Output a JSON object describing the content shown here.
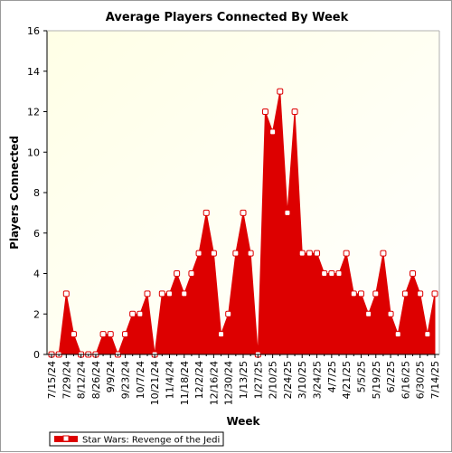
{
  "chart_data": {
    "type": "area",
    "title": "Average Players Connected By Week",
    "xlabel": "Week",
    "ylabel": "Players Connected",
    "ylim": [
      0,
      16
    ],
    "yticks": [
      0,
      2,
      4,
      6,
      8,
      10,
      12,
      14,
      16
    ],
    "grid": false,
    "legend_position": "bottom-left",
    "colors": {
      "series": "#dd0000",
      "marker_fill": "#ffffff",
      "plot_bg_start": "#ffffe6",
      "plot_bg_end": "#ffffff"
    },
    "x": [
      "7/15/24",
      "7/22/24",
      "7/29/24",
      "8/5/24",
      "8/12/24",
      "8/19/24",
      "8/26/24",
      "9/2/24",
      "9/9/24",
      "9/16/24",
      "9/23/24",
      "9/30/24",
      "10/7/24",
      "10/14/24",
      "10/21/24",
      "10/28/24",
      "11/4/24",
      "11/11/24",
      "11/18/24",
      "11/25/24",
      "12/2/24",
      "12/9/24",
      "12/16/24",
      "12/23/24",
      "12/30/24",
      "1/6/25",
      "1/13/25",
      "1/20/25",
      "1/27/25",
      "2/3/25",
      "2/10/25",
      "2/17/25",
      "2/24/25",
      "3/3/25",
      "3/10/25",
      "3/17/25",
      "3/24/25",
      "3/31/25",
      "4/7/25",
      "4/14/25",
      "4/21/25",
      "4/28/25",
      "5/5/25",
      "5/12/25",
      "5/19/25",
      "5/26/25",
      "6/2/25",
      "6/9/25",
      "6/16/25",
      "6/23/25",
      "6/30/25",
      "7/7/25",
      "7/14/25"
    ],
    "x_tick_labels": [
      "7/15/24",
      "7/29/24",
      "8/12/24",
      "8/26/24",
      "9/9/24",
      "9/23/24",
      "10/7/24",
      "10/21/24",
      "11/4/24",
      "11/18/24",
      "12/2/24",
      "12/16/24",
      "12/30/24",
      "1/13/25",
      "1/27/25",
      "2/10/25",
      "2/24/25",
      "3/10/25",
      "3/24/25",
      "4/7/25",
      "4/21/25",
      "5/5/25",
      "5/19/25",
      "6/2/25",
      "6/16/25",
      "6/30/25",
      "7/14/25"
    ],
    "series": [
      {
        "name": "Star Wars: Revenge of the Jedi",
        "values": [
          0,
          0,
          3,
          1,
          0,
          0,
          0,
          1,
          1,
          0,
          1,
          2,
          2,
          3,
          0,
          3,
          3,
          4,
          3,
          4,
          5,
          7,
          5,
          1,
          2,
          5,
          7,
          5,
          0,
          12,
          11,
          13,
          7,
          12,
          5,
          5,
          5,
          4,
          4,
          4,
          5,
          3,
          3,
          2,
          3,
          5,
          2,
          1,
          3,
          4,
          3,
          1,
          3
        ]
      }
    ]
  }
}
